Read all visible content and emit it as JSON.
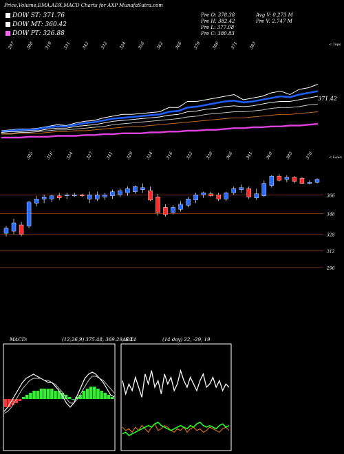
{
  "header": {
    "title": "Price,Volume,EMA,ADX,MACD Charts for AXP MunafaSutra.com",
    "legend": [
      {
        "label": "DOW ST: 371.76",
        "color": "#ffffff"
      },
      {
        "label": "DOW MT: 360.42",
        "color": "#ffffff"
      },
      {
        "label": "DOW PT: 326.88",
        "color": "#ff66ff"
      }
    ],
    "stats": [
      {
        "label": "Pre   O: 378.38"
      },
      {
        "label": "Pre   H: 382.42"
      },
      {
        "label": "Pre   L: 377.08"
      },
      {
        "label": "Pre   C: 380.83"
      },
      {
        "label": "Avg V: 0.273 M"
      },
      {
        "label": "Pre   V: 2.747 M"
      }
    ]
  },
  "chart_data": [
    {
      "type": "line",
      "name": "ema_panel",
      "corner_label": "< Tops",
      "last_label": "371.42",
      "top_labels": [
        "297",
        "308",
        "319",
        "331",
        "342",
        "332",
        "324",
        "356",
        "362",
        "366",
        "379",
        "386",
        "371",
        "383"
      ],
      "series": [
        {
          "values": [
            18,
            19,
            20,
            20,
            21,
            23,
            25,
            24,
            27,
            29,
            30,
            33,
            35,
            37,
            37,
            38,
            39,
            40,
            45,
            45,
            52,
            52,
            54,
            56,
            58,
            60,
            54,
            56,
            58,
            62,
            64,
            60,
            66,
            68,
            72
          ]
        },
        {
          "values": [
            17,
            18,
            19,
            19,
            20,
            22,
            23,
            23,
            25,
            27,
            28,
            30,
            32,
            33,
            34,
            35,
            36,
            37,
            40,
            41,
            45,
            46,
            48,
            50,
            52,
            53,
            51,
            52,
            54,
            56,
            58,
            57,
            60,
            62,
            64
          ]
        },
        {
          "values": [
            16,
            17,
            17,
            18,
            18,
            20,
            21,
            21,
            23,
            24,
            25,
            27,
            29,
            30,
            31,
            32,
            33,
            34,
            36,
            37,
            40,
            41,
            43,
            44,
            46,
            47,
            46,
            47,
            49,
            51,
            52,
            52,
            54,
            56,
            58
          ]
        },
        {
          "values": [
            15,
            15,
            16,
            16,
            17,
            18,
            19,
            19,
            20,
            21,
            22,
            23,
            25,
            26,
            27,
            28,
            29,
            30,
            31,
            32,
            34,
            35,
            37,
            38,
            39,
            40,
            40,
            41,
            42,
            44,
            45,
            45,
            46,
            48,
            49
          ]
        },
        {
          "values": [
            14,
            14,
            15,
            15,
            15,
            16,
            17,
            17,
            18,
            18,
            19,
            20,
            21,
            22,
            23,
            23,
            24,
            25,
            26,
            27,
            28,
            29,
            30,
            31,
            32,
            33,
            33,
            34,
            35,
            36,
            37,
            37,
            38,
            39,
            40
          ]
        },
        {
          "values": [
            10,
            10,
            10,
            11,
            11,
            11,
            12,
            12,
            12,
            13,
            13,
            14,
            14,
            15,
            15,
            15,
            16,
            16,
            17,
            17,
            18,
            18,
            19,
            19,
            20,
            21,
            21,
            22,
            22,
            23,
            23,
            24,
            24,
            25,
            26
          ]
        }
      ]
    },
    {
      "type": "candlestick",
      "name": "price_panel",
      "corner_label": "< Lows",
      "top_labels": [
        "305",
        "316",
        "324",
        "327",
        "341",
        "329",
        "324",
        "316",
        "332",
        "338",
        "366",
        "341",
        "360",
        "385",
        "376"
      ],
      "y_ticks": [
        366,
        348,
        328,
        312,
        296
      ],
      "ylim": [
        282,
        396
      ],
      "candles": [
        {
          "o": 329,
          "h": 336,
          "l": 326,
          "c": 334
        },
        {
          "o": 331,
          "h": 343,
          "l": 328,
          "c": 339
        },
        {
          "o": 337,
          "h": 340,
          "l": 326,
          "c": 328
        },
        {
          "o": 336,
          "h": 360,
          "l": 334,
          "c": 359
        },
        {
          "o": 358,
          "h": 365,
          "l": 355,
          "c": 362
        },
        {
          "o": 362,
          "h": 366,
          "l": 358,
          "c": 364
        },
        {
          "o": 362,
          "h": 366,
          "l": 359,
          "c": 365
        },
        {
          "o": 365,
          "h": 368,
          "l": 361,
          "c": 363
        },
        {
          "o": 365,
          "h": 368,
          "l": 362,
          "c": 366
        },
        {
          "o": 366,
          "h": 368,
          "l": 364,
          "c": 366
        },
        {
          "o": 366,
          "h": 367,
          "l": 364,
          "c": 365
        },
        {
          "o": 362,
          "h": 369,
          "l": 358,
          "c": 366
        },
        {
          "o": 362,
          "h": 369,
          "l": 360,
          "c": 366
        },
        {
          "o": 364,
          "h": 368,
          "l": 361,
          "c": 366
        },
        {
          "o": 365,
          "h": 371,
          "l": 362,
          "c": 369
        },
        {
          "o": 366,
          "h": 372,
          "l": 364,
          "c": 370
        },
        {
          "o": 368,
          "h": 374,
          "l": 365,
          "c": 372
        },
        {
          "o": 369,
          "h": 375,
          "l": 367,
          "c": 374
        },
        {
          "o": 371,
          "h": 377,
          "l": 368,
          "c": 373
        },
        {
          "o": 370,
          "h": 374,
          "l": 360,
          "c": 361
        },
        {
          "o": 364,
          "h": 367,
          "l": 346,
          "c": 349
        },
        {
          "o": 354,
          "h": 357,
          "l": 345,
          "c": 347
        },
        {
          "o": 349,
          "h": 356,
          "l": 347,
          "c": 354
        },
        {
          "o": 352,
          "h": 360,
          "l": 350,
          "c": 357
        },
        {
          "o": 356,
          "h": 364,
          "l": 354,
          "c": 362
        },
        {
          "o": 361,
          "h": 368,
          "l": 358,
          "c": 366
        },
        {
          "o": 366,
          "h": 369,
          "l": 363,
          "c": 368
        },
        {
          "o": 367,
          "h": 369,
          "l": 364,
          "c": 365
        },
        {
          "o": 366,
          "h": 368,
          "l": 360,
          "c": 362
        },
        {
          "o": 362,
          "h": 369,
          "l": 360,
          "c": 368
        },
        {
          "o": 368,
          "h": 374,
          "l": 366,
          "c": 372
        },
        {
          "o": 371,
          "h": 376,
          "l": 368,
          "c": 373
        },
        {
          "o": 372,
          "h": 374,
          "l": 362,
          "c": 364
        },
        {
          "o": 363,
          "h": 372,
          "l": 361,
          "c": 367
        },
        {
          "o": 365,
          "h": 380,
          "l": 364,
          "c": 377
        },
        {
          "o": 375,
          "h": 385,
          "l": 373,
          "c": 384
        },
        {
          "o": 384,
          "h": 386,
          "l": 379,
          "c": 380
        },
        {
          "o": 381,
          "h": 385,
          "l": 378,
          "c": 383
        },
        {
          "o": 383,
          "h": 384,
          "l": 377,
          "c": 379
        },
        {
          "o": 382,
          "h": 383,
          "l": 377,
          "c": 377
        },
        {
          "o": 378,
          "h": 380,
          "l": 376,
          "c": 378
        },
        {
          "o": 378,
          "h": 382,
          "l": 377,
          "c": 381
        }
      ]
    },
    {
      "type": "bar",
      "name": "macd_panel",
      "label": "MACD:",
      "params": "(12,26,9) 375.48, 369.29, 6.14",
      "histogram": [
        -4,
        -4,
        -3,
        -2,
        -1,
        1,
        2,
        3,
        4,
        4,
        5,
        5,
        5,
        5,
        4,
        4,
        3,
        2,
        1,
        0,
        1,
        2,
        4,
        5,
        6,
        6,
        5,
        4,
        3,
        2,
        1
      ],
      "macd_line": [
        -6,
        -4,
        -1,
        2,
        5,
        8,
        10,
        11,
        12,
        11,
        10,
        9,
        8,
        8,
        6,
        4,
        1,
        -2,
        -4,
        -2,
        2,
        6,
        10,
        12,
        13,
        12,
        10,
        8,
        5,
        2,
        1
      ],
      "signal_line": [
        -7,
        -6,
        -4,
        -1,
        2,
        5,
        7,
        9,
        10,
        10,
        10,
        9,
        9,
        8,
        7,
        5,
        3,
        0,
        -2,
        -2,
        0,
        3,
        6,
        9,
        11,
        11,
        10,
        9,
        7,
        5,
        3
      ]
    },
    {
      "type": "line",
      "name": "adx_panel",
      "label": "ADX",
      "params": "(14 day) 22, -29, 19",
      "ylim": [
        0,
        60
      ],
      "series": [
        {
          "values": [
            40,
            32,
            38,
            34,
            42,
            36,
            30,
            44,
            38,
            46,
            36,
            40,
            32,
            44,
            38,
            42,
            34,
            38,
            46,
            40,
            36,
            42,
            38,
            34,
            40,
            44,
            36,
            38,
            42,
            36,
            40,
            34,
            38,
            36
          ]
        },
        {
          "values": [
            12,
            10,
            11,
            9,
            12,
            10,
            13,
            11,
            9,
            12,
            14,
            10,
            11,
            13,
            12,
            10,
            9,
            11,
            10,
            12,
            9,
            11,
            12,
            10,
            11,
            9,
            10,
            12,
            11,
            10,
            9,
            11,
            12,
            10
          ]
        },
        {
          "values": [
            8,
            9,
            7,
            8,
            9,
            10,
            11,
            12,
            13,
            12,
            14,
            15,
            13,
            12,
            11,
            10,
            11,
            12,
            13,
            12,
            11,
            13,
            12,
            14,
            15,
            13,
            12,
            13,
            12,
            11,
            13,
            14,
            12,
            13
          ]
        }
      ]
    }
  ]
}
